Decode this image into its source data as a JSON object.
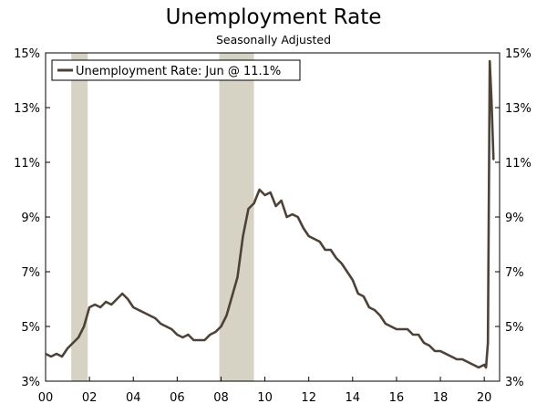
{
  "chart_data": {
    "type": "line",
    "title": "Unemployment Rate",
    "subtitle": "Seasonally Adjusted",
    "xlabel": "",
    "ylabel": "",
    "xlim": [
      2000,
      2020.7
    ],
    "ylim": [
      3,
      15
    ],
    "y_ticks": [
      "3%",
      "5%",
      "7%",
      "9%",
      "11%",
      "13%",
      "15%"
    ],
    "y_tick_values": [
      3,
      5,
      7,
      9,
      11,
      13,
      15
    ],
    "x_ticks": [
      "00",
      "02",
      "04",
      "06",
      "08",
      "10",
      "12",
      "14",
      "16",
      "18",
      "20"
    ],
    "x_tick_values": [
      2000,
      2002,
      2004,
      2006,
      2008,
      2010,
      2012,
      2014,
      2016,
      2018,
      2020
    ],
    "grid": false,
    "legend_position": "top-left",
    "line_color": "#4d4238",
    "recession_color": "#d6d2c4",
    "recessions": [
      [
        2001.17,
        2001.92
      ],
      [
        2007.92,
        2009.5
      ]
    ],
    "series": [
      {
        "name": "Unemployment Rate: Jun @ 11.1%",
        "x": [
          2000.0,
          2000.25,
          2000.5,
          2000.75,
          2001.0,
          2001.25,
          2001.5,
          2001.75,
          2002.0,
          2002.25,
          2002.5,
          2002.75,
          2003.0,
          2003.25,
          2003.5,
          2003.75,
          2004.0,
          2004.25,
          2004.5,
          2004.75,
          2005.0,
          2005.25,
          2005.5,
          2005.75,
          2006.0,
          2006.25,
          2006.5,
          2006.75,
          2007.0,
          2007.25,
          2007.5,
          2007.75,
          2008.0,
          2008.25,
          2008.5,
          2008.75,
          2009.0,
          2009.25,
          2009.5,
          2009.75,
          2010.0,
          2010.25,
          2010.5,
          2010.75,
          2011.0,
          2011.25,
          2011.5,
          2011.75,
          2012.0,
          2012.25,
          2012.5,
          2012.75,
          2013.0,
          2013.25,
          2013.5,
          2013.75,
          2014.0,
          2014.25,
          2014.5,
          2014.75,
          2015.0,
          2015.25,
          2015.5,
          2015.75,
          2016.0,
          2016.25,
          2016.5,
          2016.75,
          2017.0,
          2017.25,
          2017.5,
          2017.75,
          2018.0,
          2018.25,
          2018.5,
          2018.75,
          2019.0,
          2019.25,
          2019.5,
          2019.75,
          2020.0,
          2020.08,
          2020.17,
          2020.25,
          2020.33,
          2020.42
        ],
        "values": [
          4.0,
          3.9,
          4.0,
          3.9,
          4.2,
          4.4,
          4.6,
          5.0,
          5.7,
          5.8,
          5.7,
          5.9,
          5.8,
          6.0,
          6.2,
          6.0,
          5.7,
          5.6,
          5.5,
          5.4,
          5.3,
          5.1,
          5.0,
          4.9,
          4.7,
          4.6,
          4.7,
          4.5,
          4.5,
          4.5,
          4.7,
          4.8,
          5.0,
          5.4,
          6.1,
          6.8,
          8.3,
          9.3,
          9.5,
          10.0,
          9.8,
          9.9,
          9.4,
          9.6,
          9.0,
          9.1,
          9.0,
          8.6,
          8.3,
          8.2,
          8.1,
          7.8,
          7.8,
          7.5,
          7.3,
          7.0,
          6.7,
          6.2,
          6.1,
          5.7,
          5.6,
          5.4,
          5.1,
          5.0,
          4.9,
          4.9,
          4.9,
          4.7,
          4.7,
          4.4,
          4.3,
          4.1,
          4.1,
          4.0,
          3.9,
          3.8,
          3.8,
          3.7,
          3.6,
          3.5,
          3.6,
          3.5,
          4.4,
          14.7,
          13.3,
          11.1
        ]
      }
    ]
  }
}
